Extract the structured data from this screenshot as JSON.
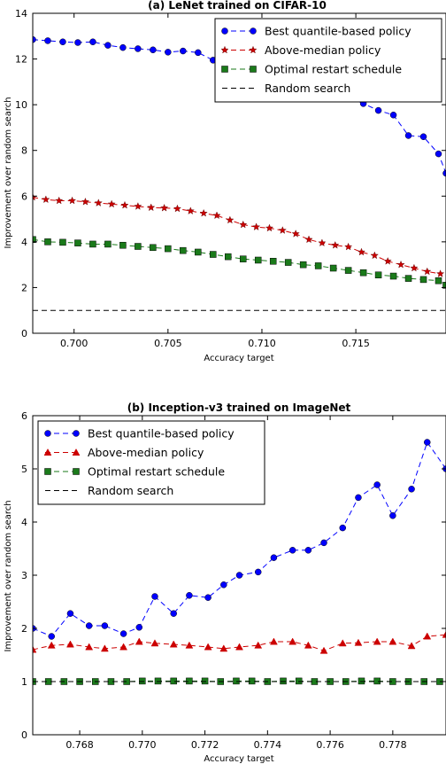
{
  "chart_data": [
    {
      "type": "line",
      "title": "(a) LeNet trained on CIFAR-10",
      "xlabel": "Accuracy target",
      "ylabel": "Improvement over random search",
      "xlim": [
        0.6978,
        0.7198
      ],
      "ylim": [
        0,
        14
      ],
      "xticks": [
        "0.700",
        "0.705",
        "0.710",
        "0.715"
      ],
      "xtick_values": [
        0.7,
        0.705,
        0.71,
        0.715
      ],
      "yticks": [
        "0",
        "2",
        "4",
        "6",
        "8",
        "10",
        "12",
        "14"
      ],
      "ytick_values": [
        0,
        2,
        4,
        6,
        8,
        10,
        12,
        14
      ],
      "legend_position": "top-right",
      "series": [
        {
          "name": "Best quantile-based policy",
          "color": "#0000ff",
          "marker": "circle",
          "dash": "6,4",
          "x": [
            0.6978,
            0.6986,
            0.6994,
            0.7002,
            0.701,
            0.7018,
            0.7026,
            0.7034,
            0.7042,
            0.705,
            0.7058,
            0.7066,
            0.7074,
            0.7082,
            0.709,
            0.7098,
            0.7106,
            0.7114,
            0.7122,
            0.713,
            0.7138,
            0.7146,
            0.7154,
            0.7162,
            0.717,
            0.7178,
            0.7186,
            0.7194,
            0.7198
          ],
          "y": [
            12.85,
            12.8,
            12.75,
            12.72,
            12.75,
            12.6,
            12.5,
            12.45,
            12.4,
            12.3,
            12.35,
            12.28,
            11.95,
            11.8,
            11.65,
            11.5,
            11.35,
            11.2,
            11.0,
            10.8,
            10.6,
            10.3,
            10.05,
            9.75,
            9.55,
            8.65,
            8.6,
            7.85,
            7.0
          ]
        },
        {
          "name": "Above-median policy",
          "color": "#cc0000",
          "marker": "star",
          "dash": "6,4",
          "x": [
            0.6978,
            0.6985,
            0.6992,
            0.6999,
            0.7006,
            0.7013,
            0.702,
            0.7027,
            0.7034,
            0.7041,
            0.7048,
            0.7055,
            0.7062,
            0.7069,
            0.7076,
            0.7083,
            0.709,
            0.7097,
            0.7104,
            0.7111,
            0.7118,
            0.7125,
            0.7132,
            0.7139,
            0.7146,
            0.7153,
            0.716,
            0.7167,
            0.7174,
            0.7181,
            0.7188,
            0.7195
          ],
          "y": [
            5.95,
            5.85,
            5.8,
            5.8,
            5.75,
            5.7,
            5.65,
            5.6,
            5.55,
            5.5,
            5.48,
            5.45,
            5.35,
            5.25,
            5.15,
            4.95,
            4.75,
            4.65,
            4.6,
            4.5,
            4.35,
            4.1,
            3.95,
            3.85,
            3.78,
            3.55,
            3.4,
            3.15,
            3.0,
            2.85,
            2.7,
            2.6
          ]
        },
        {
          "name": "Optimal restart schedule",
          "color": "#1a7a1a",
          "marker": "square",
          "dash": "6,4",
          "x": [
            0.6978,
            0.6986,
            0.6994,
            0.7002,
            0.701,
            0.7018,
            0.7026,
            0.7034,
            0.7042,
            0.705,
            0.7058,
            0.7066,
            0.7074,
            0.7082,
            0.709,
            0.7098,
            0.7106,
            0.7114,
            0.7122,
            0.713,
            0.7138,
            0.7146,
            0.7154,
            0.7162,
            0.717,
            0.7178,
            0.7186,
            0.7194,
            0.7198
          ],
          "y": [
            4.1,
            4.0,
            3.98,
            3.95,
            3.9,
            3.9,
            3.85,
            3.8,
            3.75,
            3.7,
            3.62,
            3.55,
            3.45,
            3.35,
            3.25,
            3.2,
            3.15,
            3.1,
            3.0,
            2.95,
            2.85,
            2.75,
            2.65,
            2.55,
            2.5,
            2.4,
            2.35,
            2.3,
            2.1
          ]
        },
        {
          "name": "Random search",
          "color": "#000000",
          "marker": "none",
          "dash": "6,4",
          "x": [
            0.6978,
            0.7198
          ],
          "y": [
            1.0,
            1.0
          ]
        }
      ]
    },
    {
      "type": "line",
      "title": "(b) Inception-v3 trained on ImageNet",
      "xlabel": "Accuracy target",
      "ylabel": "Improvement over random search",
      "xlim": [
        0.7665,
        0.7797
      ],
      "ylim": [
        0,
        6
      ],
      "xticks": [
        "0.768",
        "0.770",
        "0.772",
        "0.774",
        "0.776",
        "0.778"
      ],
      "xtick_values": [
        0.768,
        0.77,
        0.772,
        0.774,
        0.776,
        0.778
      ],
      "yticks": [
        "0",
        "1",
        "2",
        "3",
        "4",
        "5",
        "6"
      ],
      "ytick_values": [
        0,
        1,
        2,
        3,
        4,
        5,
        6
      ],
      "legend_position": "top-left",
      "series": [
        {
          "name": "Best quantile-based policy",
          "color": "#0000ff",
          "marker": "circle",
          "dash": "6,4",
          "x": [
            0.7665,
            0.7671,
            0.7677,
            0.7683,
            0.7688,
            0.7694,
            0.7699,
            0.7704,
            0.771,
            0.7715,
            0.7721,
            0.7726,
            0.7731,
            0.7737,
            0.7742,
            0.7748,
            0.7753,
            0.7758,
            0.7764,
            0.7769,
            0.7775,
            0.778,
            0.7786,
            0.7791,
            0.7797
          ],
          "y": [
            2.0,
            1.85,
            2.28,
            2.05,
            2.05,
            1.9,
            2.02,
            2.6,
            2.28,
            2.62,
            2.58,
            2.82,
            3.0,
            3.06,
            3.33,
            3.47,
            3.47,
            3.61,
            3.89,
            4.46,
            4.7,
            4.12,
            4.62,
            5.5,
            5.0
          ]
        },
        {
          "name": "Above-median policy",
          "color": "#cc0000",
          "marker": "triangle",
          "dash": "6,4",
          "x": [
            0.7665,
            0.7671,
            0.7677,
            0.7683,
            0.7688,
            0.7694,
            0.7699,
            0.7704,
            0.771,
            0.7715,
            0.7721,
            0.7726,
            0.7731,
            0.7737,
            0.7742,
            0.7748,
            0.7753,
            0.7758,
            0.7764,
            0.7769,
            0.7775,
            0.778,
            0.7786,
            0.7791,
            0.7797
          ],
          "y": [
            1.6,
            1.68,
            1.7,
            1.65,
            1.62,
            1.65,
            1.75,
            1.72,
            1.7,
            1.68,
            1.65,
            1.62,
            1.65,
            1.68,
            1.75,
            1.75,
            1.68,
            1.58,
            1.72,
            1.73,
            1.75,
            1.75,
            1.67,
            1.85,
            1.88
          ]
        },
        {
          "name": "Optimal restart schedule",
          "color": "#1a7a1a",
          "marker": "square",
          "dash": "6,4",
          "x": [
            0.7665,
            0.767,
            0.7675,
            0.768,
            0.7685,
            0.769,
            0.7695,
            0.77,
            0.7705,
            0.771,
            0.7715,
            0.772,
            0.7725,
            0.773,
            0.7735,
            0.774,
            0.7745,
            0.775,
            0.7755,
            0.776,
            0.7765,
            0.777,
            0.7775,
            0.778,
            0.7785,
            0.779,
            0.7795
          ],
          "y": [
            1.0,
            1.0,
            1.0,
            1.0,
            1.0,
            1.0,
            1.0,
            1.01,
            1.01,
            1.01,
            1.01,
            1.01,
            1.0,
            1.01,
            1.01,
            1.0,
            1.01,
            1.01,
            1.0,
            1.0,
            1.0,
            1.01,
            1.01,
            1.0,
            1.0,
            1.0,
            1.0
          ]
        },
        {
          "name": "Random search",
          "color": "#000000",
          "marker": "none",
          "dash": "6,4",
          "x": [
            0.7665,
            0.7797
          ],
          "y": [
            1.0,
            1.0
          ]
        }
      ]
    }
  ]
}
